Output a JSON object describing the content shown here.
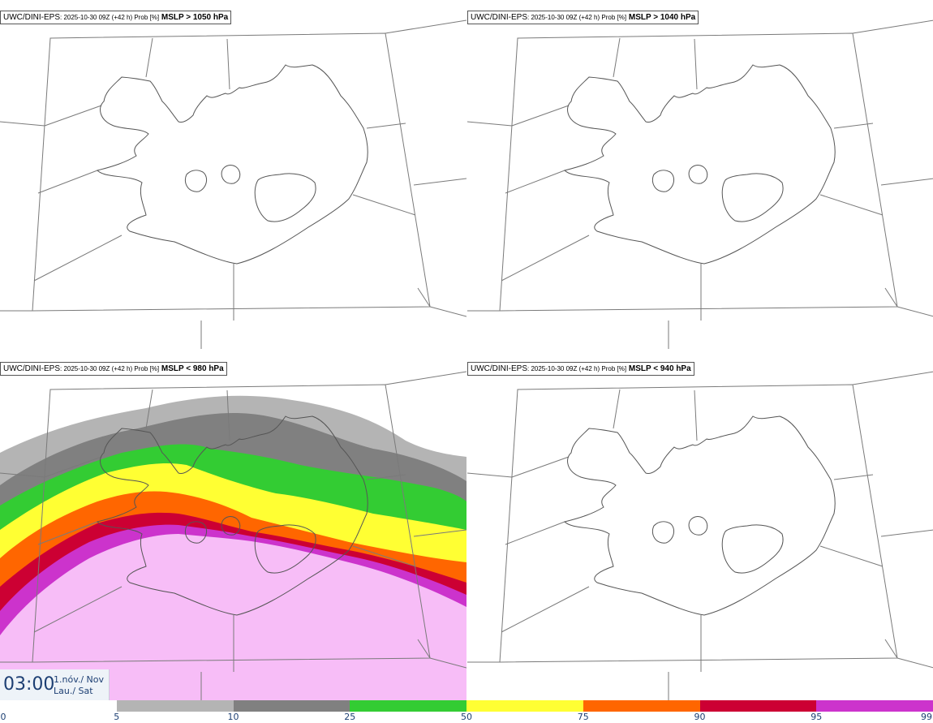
{
  "panels": [
    {
      "source": "UWC/DINI-EPS",
      "meta": ": 2025-10-30 09Z (+42 h) Prob [%]",
      "threshold": "MSLP > 1050 hPa"
    },
    {
      "source": "UWC/DINI-EPS",
      "meta": ": 2025-10-30 09Z (+42 h) Prob [%]",
      "threshold": "MSLP > 1040 hPa"
    },
    {
      "source": "UWC/DINI-EPS",
      "meta": ": 2025-10-30 09Z (+42 h) Prob [%]",
      "threshold": "MSLP < 980 hPa"
    },
    {
      "source": "UWC/DINI-EPS",
      "meta": ": 2025-10-30 09Z (+42 h) Prob [%]",
      "threshold": "MSLP < 940 hPa"
    }
  ],
  "valid_time": {
    "time": "03:00",
    "date_line1": "1.nóv./ Nov",
    "date_line2": "Lau./ Sat"
  },
  "colorbar": {
    "ticks": [
      "0",
      "5",
      "10",
      "25",
      "50",
      "75",
      "90",
      "95",
      "99"
    ],
    "colors": [
      "#ffffff",
      "#b4b4b4",
      "#808080",
      "#33cc33",
      "#ffff33",
      "#ff6600",
      "#cc0033",
      "#cc33cc",
      "#f7bdf7"
    ]
  }
}
